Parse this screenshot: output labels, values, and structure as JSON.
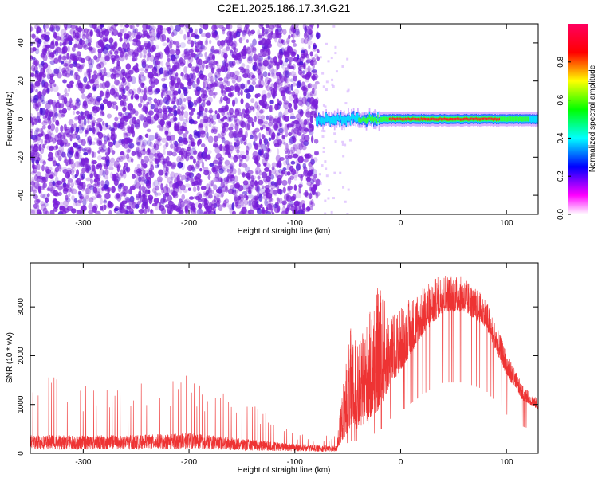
{
  "title": "C2E1.2025.186.17.34.G21",
  "chart_data": [
    {
      "type": "heatmap",
      "xlabel": "Height of straight line (km)",
      "ylabel": "Frequency (Hz)",
      "xlim": [
        -350,
        130
      ],
      "ylim": [
        -50,
        50
      ],
      "xticks": [
        -300,
        -200,
        -100,
        0,
        100
      ],
      "yticks": [
        -40,
        -20,
        0,
        20,
        40
      ],
      "colorbar": {
        "label": "Normalized spectral amplitude",
        "range": [
          0,
          1
        ],
        "ticks": [
          "0.0",
          "0.2",
          "0.4",
          "0.6",
          "0.8"
        ],
        "colors": [
          "#ffffff",
          "#ff00ff",
          "#0000ff",
          "#00ffff",
          "#00ff00",
          "#ffff00",
          "#ff0000",
          "#ff0060"
        ]
      },
      "noise_region": {
        "x_range": [
          -350,
          -78
        ],
        "y_range": [
          -50,
          50
        ],
        "amplitude_range": [
          0.0,
          0.2
        ],
        "color": "#7a1fd8"
      },
      "signal_band": {
        "x_range": [
          -80,
          130
        ],
        "center_frequency": 0,
        "peak_amplitude": 0.95,
        "approximate_profile": [
          {
            "x": -80,
            "amp": 0.45
          },
          {
            "x": -60,
            "amp": 0.5
          },
          {
            "x": -40,
            "amp": 0.55
          },
          {
            "x": -20,
            "amp": 0.7
          },
          {
            "x": 0,
            "amp": 0.95
          },
          {
            "x": 50,
            "amp": 0.95
          },
          {
            "x": 90,
            "amp": 0.85
          },
          {
            "x": 110,
            "amp": 0.6
          },
          {
            "x": 130,
            "amp": 0.5
          }
        ]
      }
    },
    {
      "type": "line",
      "xlabel": "Height of straight line (km)",
      "ylabel": "SNR (10 * v/v)",
      "xlim": [
        -350,
        130
      ],
      "ylim": [
        0,
        3900
      ],
      "xticks": [
        -300,
        -200,
        -100,
        0,
        100
      ],
      "yticks": [
        0,
        1000,
        2000,
        3000
      ],
      "color": "#ee3333",
      "envelope": {
        "x": [
          -350,
          -300,
          -250,
          -200,
          -150,
          -100,
          -60,
          -48,
          -40,
          -20,
          -10,
          0,
          20,
          40,
          60,
          80,
          100,
          115,
          130
        ],
        "baseline": [
          250,
          250,
          250,
          280,
          200,
          130,
          100,
          500,
          500,
          900,
          1400,
          1700,
          2400,
          2900,
          2900,
          2600,
          1600,
          1100,
          900
        ],
        "peak": [
          1600,
          1550,
          1500,
          1600,
          1250,
          450,
          350,
          2600,
          2200,
          3500,
          2800,
          3000,
          3400,
          3700,
          3600,
          3200,
          2100,
          1400,
          1100
        ]
      }
    }
  ]
}
